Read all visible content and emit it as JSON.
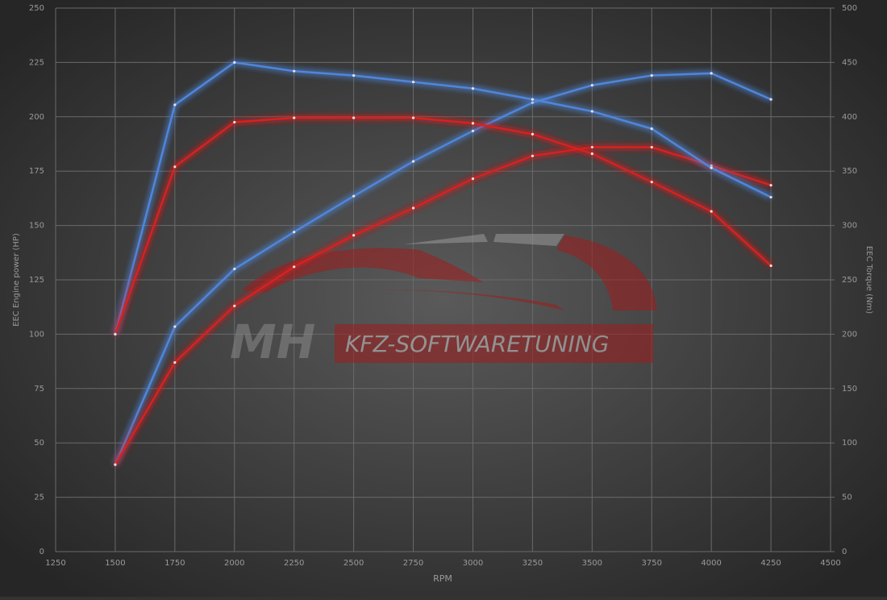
{
  "chart_data": {
    "type": "line",
    "x_label": "RPM",
    "y_label": "EEC Engine power (HP)",
    "y2_label": "EEC Torque (Nm)",
    "watermark": {
      "logo": "MH",
      "text": "KFZ-SOFTWARETUNING"
    },
    "x": [
      1500,
      1750,
      2000,
      2250,
      2500,
      2750,
      3000,
      3250,
      3500,
      3750,
      4000,
      4250
    ],
    "series": [
      {
        "color": "#4f86dc",
        "axis": "y",
        "values": [
          40,
          103.5,
          130,
          147,
          163.5,
          179.5,
          193.5,
          206.5,
          214.5,
          219,
          220,
          208
        ]
      },
      {
        "color": "#d42222",
        "axis": "y",
        "values": [
          40,
          87,
          113,
          131,
          145.5,
          158,
          171.5,
          182,
          186,
          186,
          177.5,
          168.5
        ]
      },
      {
        "color": "#4f86dc",
        "axis": "y2",
        "values": [
          200,
          411,
          450,
          442,
          438,
          432,
          426,
          416,
          405,
          389,
          353,
          326
        ]
      },
      {
        "color": "#d42222",
        "axis": "y2",
        "values": [
          200,
          354,
          395,
          399,
          399,
          399,
          394,
          384,
          366,
          340,
          313,
          263
        ]
      }
    ],
    "xlim": [
      1250,
      4500
    ],
    "xticks": [
      1250,
      1500,
      1750,
      2000,
      2250,
      2500,
      2750,
      3000,
      3250,
      3500,
      3750,
      4000,
      4250,
      4500
    ],
    "ylim": [
      0,
      250
    ],
    "yticks": [
      0,
      25,
      50,
      75,
      100,
      125,
      150,
      175,
      200,
      225,
      250
    ],
    "y2lim": [
      0,
      500
    ],
    "y2ticks": [
      0,
      50,
      100,
      150,
      200,
      250,
      300,
      350,
      400,
      450,
      500
    ],
    "grid": true
  }
}
